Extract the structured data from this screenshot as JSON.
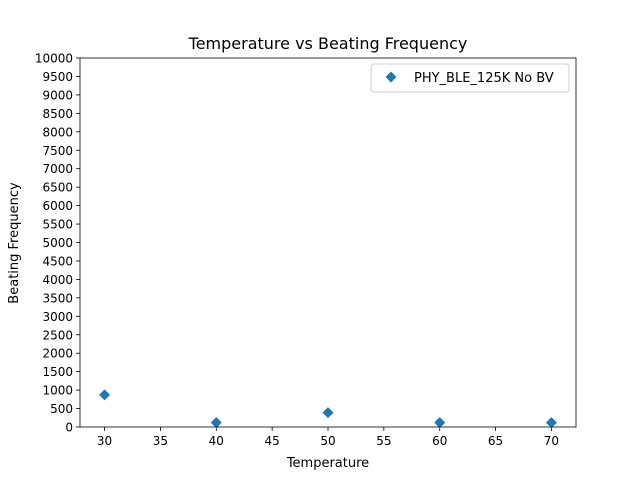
{
  "chart_data": {
    "type": "scatter",
    "title": "Temperature vs Beating Frequency",
    "xlabel": "Temperature",
    "ylabel": "Beating Frequency",
    "xlim": [
      27.8,
      72.2
    ],
    "ylim": [
      0,
      10000
    ],
    "xticks": [
      30,
      35,
      40,
      45,
      50,
      55,
      60,
      65,
      70
    ],
    "yticks": [
      0,
      500,
      1000,
      1500,
      2000,
      2500,
      3000,
      3500,
      4000,
      4500,
      5000,
      5500,
      6000,
      6500,
      7000,
      7500,
      8000,
      8500,
      9000,
      9500,
      10000
    ],
    "grid": false,
    "legend_position": "top-right",
    "series": [
      {
        "name": "PHY_BLE_125K No BV",
        "marker": "diamond",
        "color": "#1f77b4",
        "x": [
          30,
          40,
          50,
          60,
          70
        ],
        "y": [
          870,
          120,
          390,
          120,
          120
        ]
      }
    ]
  }
}
